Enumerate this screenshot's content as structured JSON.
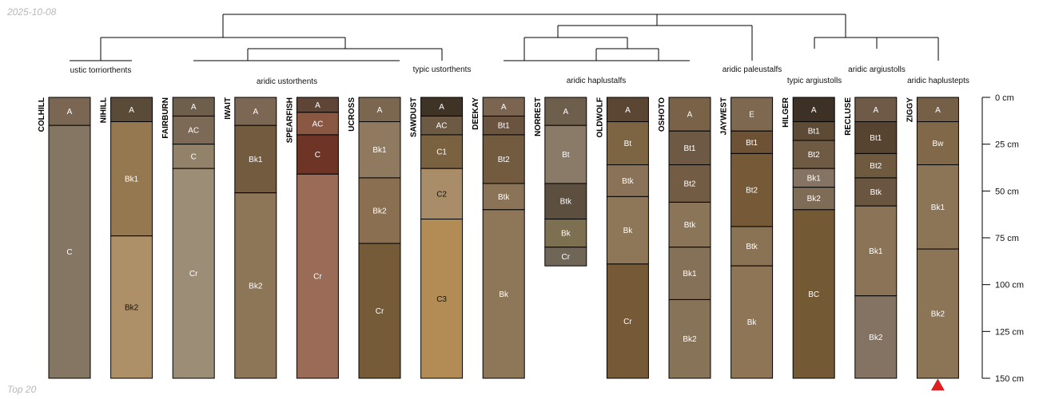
{
  "date_label": "2025-10-08",
  "footer_label": "Top 20",
  "depth_axis": {
    "max_depth_cm": 150,
    "ticks": [
      {
        "value": 0,
        "label": "0 cm"
      },
      {
        "value": 25,
        "label": "25 cm"
      },
      {
        "value": 50,
        "label": "50 cm"
      },
      {
        "value": 75,
        "label": "75 cm"
      },
      {
        "value": 100,
        "label": "100 cm"
      },
      {
        "value": 125,
        "label": "125 cm"
      },
      {
        "value": 150,
        "label": "150 cm"
      }
    ]
  },
  "profiles": [
    {
      "name": "COLHILL",
      "horizons": [
        {
          "name": "A",
          "top": 0,
          "bottom": 15,
          "color": "#7a6652"
        },
        {
          "name": "C",
          "top": 15,
          "bottom": 150,
          "color": "#857563"
        }
      ]
    },
    {
      "name": "NIHILL",
      "horizons": [
        {
          "name": "A",
          "top": 0,
          "bottom": 13,
          "color": "#5a4a38"
        },
        {
          "name": "Bk1",
          "top": 13,
          "bottom": 74,
          "color": "#957850"
        },
        {
          "name": "Bk2",
          "top": 74,
          "bottom": 150,
          "color": "#ad9068",
          "dark_text": true
        }
      ]
    },
    {
      "name": "FAIRBURN",
      "horizons": [
        {
          "name": "A",
          "top": 0,
          "bottom": 10,
          "color": "#6e5f4d"
        },
        {
          "name": "AC",
          "top": 10,
          "bottom": 25,
          "color": "#7d6a56"
        },
        {
          "name": "C",
          "top": 25,
          "bottom": 38,
          "color": "#928269"
        },
        {
          "name": "Cr",
          "top": 38,
          "bottom": 150,
          "color": "#9b8d76"
        }
      ]
    },
    {
      "name": "IWAIT",
      "horizons": [
        {
          "name": "A",
          "top": 0,
          "bottom": 15,
          "color": "#7b6753"
        },
        {
          "name": "Bk1",
          "top": 15,
          "bottom": 51,
          "color": "#735b40"
        },
        {
          "name": "Bk2",
          "top": 51,
          "bottom": 150,
          "color": "#8d7658"
        }
      ]
    },
    {
      "name": "SPEARFISH",
      "horizons": [
        {
          "name": "A",
          "top": 0,
          "bottom": 8,
          "color": "#5e4536"
        },
        {
          "name": "AC",
          "top": 8,
          "bottom": 20,
          "color": "#8a5842"
        },
        {
          "name": "C",
          "top": 20,
          "bottom": 41,
          "color": "#6e3426"
        },
        {
          "name": "Cr",
          "top": 41,
          "bottom": 150,
          "color": "#9a6b56"
        }
      ]
    },
    {
      "name": "UCROSS",
      "horizons": [
        {
          "name": "A",
          "top": 0,
          "bottom": 13,
          "color": "#7b6650"
        },
        {
          "name": "Bk1",
          "top": 13,
          "bottom": 43,
          "color": "#8f7a5f"
        },
        {
          "name": "Bk2",
          "top": 43,
          "bottom": 78,
          "color": "#8a7050"
        },
        {
          "name": "Cr",
          "top": 78,
          "bottom": 150,
          "color": "#755b38"
        }
      ]
    },
    {
      "name": "SAWDUST",
      "horizons": [
        {
          "name": "A",
          "top": 0,
          "bottom": 10,
          "color": "#3f3326"
        },
        {
          "name": "AC",
          "top": 10,
          "bottom": 20,
          "color": "#6d5a44"
        },
        {
          "name": "C1",
          "top": 20,
          "bottom": 38,
          "color": "#7a6140"
        },
        {
          "name": "C2",
          "top": 38,
          "bottom": 65,
          "color": "#a88d68",
          "dark_text": true
        },
        {
          "name": "C3",
          "top": 65,
          "bottom": 150,
          "color": "#b38c55",
          "dark_text": true
        }
      ]
    },
    {
      "name": "DEEKAY",
      "horizons": [
        {
          "name": "A",
          "top": 0,
          "bottom": 10,
          "color": "#7b6551"
        },
        {
          "name": "Bt1",
          "top": 10,
          "bottom": 20,
          "color": "#6a5440"
        },
        {
          "name": "Bt2",
          "top": 20,
          "bottom": 46,
          "color": "#735b40"
        },
        {
          "name": "Btk",
          "top": 46,
          "bottom": 60,
          "color": "#8a7356"
        },
        {
          "name": "Bk",
          "top": 60,
          "bottom": 150,
          "color": "#8e7758"
        }
      ]
    },
    {
      "name": "NORREST",
      "horizons": [
        {
          "name": "A",
          "top": 0,
          "bottom": 15,
          "color": "#6e5e4c"
        },
        {
          "name": "Bt",
          "top": 15,
          "bottom": 46,
          "color": "#8a7a68"
        },
        {
          "name": "Btk",
          "top": 46,
          "bottom": 65,
          "color": "#5d4f40"
        },
        {
          "name": "Bk",
          "top": 65,
          "bottom": 80,
          "color": "#7c7050"
        },
        {
          "name": "Cr",
          "top": 80,
          "bottom": 90,
          "color": "#6f6658"
        }
      ]
    },
    {
      "name": "OLDWOLF",
      "horizons": [
        {
          "name": "A",
          "top": 0,
          "bottom": 13,
          "color": "#5a4633"
        },
        {
          "name": "Bt",
          "top": 13,
          "bottom": 36,
          "color": "#7d6543"
        },
        {
          "name": "Btk",
          "top": 36,
          "bottom": 53,
          "color": "#8a7258"
        },
        {
          "name": "Bk",
          "top": 53,
          "bottom": 89,
          "color": "#8e7658"
        },
        {
          "name": "Cr",
          "top": 89,
          "bottom": 150,
          "color": "#765a38"
        }
      ]
    },
    {
      "name": "OSHOTO",
      "horizons": [
        {
          "name": "A",
          "top": 0,
          "bottom": 18,
          "color": "#7a6248"
        },
        {
          "name": "Bt1",
          "top": 18,
          "bottom": 36,
          "color": "#6e5a44"
        },
        {
          "name": "Bt2",
          "top": 36,
          "bottom": 56,
          "color": "#735c44"
        },
        {
          "name": "Btk",
          "top": 56,
          "bottom": 80,
          "color": "#8a7558"
        },
        {
          "name": "Bk1",
          "top": 80,
          "bottom": 108,
          "color": "#857058"
        },
        {
          "name": "Bk2",
          "top": 108,
          "bottom": 150,
          "color": "#877358"
        }
      ]
    },
    {
      "name": "JAYWEST",
      "horizons": [
        {
          "name": "E",
          "top": 0,
          "bottom": 18,
          "color": "#7e6850"
        },
        {
          "name": "Bt1",
          "top": 18,
          "bottom": 30,
          "color": "#6d5236"
        },
        {
          "name": "Bt2",
          "top": 30,
          "bottom": 69,
          "color": "#765a38"
        },
        {
          "name": "Btk",
          "top": 69,
          "bottom": 90,
          "color": "#8a7255"
        },
        {
          "name": "Bk",
          "top": 90,
          "bottom": 150,
          "color": "#8e7556"
        }
      ]
    },
    {
      "name": "HILGER",
      "horizons": [
        {
          "name": "A",
          "top": 0,
          "bottom": 13,
          "color": "#3d3024"
        },
        {
          "name": "Bt1",
          "top": 13,
          "bottom": 23,
          "color": "#5e4b36"
        },
        {
          "name": "Bt2",
          "top": 23,
          "bottom": 38,
          "color": "#6f5a43"
        },
        {
          "name": "Bk1",
          "top": 38,
          "bottom": 48,
          "color": "#857463"
        },
        {
          "name": "Bk2",
          "top": 48,
          "bottom": 60,
          "color": "#7e6c57"
        },
        {
          "name": "BC",
          "top": 60,
          "bottom": 150,
          "color": "#735a35"
        }
      ]
    },
    {
      "name": "RECLUSE",
      "horizons": [
        {
          "name": "A",
          "top": 0,
          "bottom": 13,
          "color": "#6e5a46"
        },
        {
          "name": "Bt1",
          "top": 13,
          "bottom": 30,
          "color": "#574430"
        },
        {
          "name": "Bt2",
          "top": 30,
          "bottom": 43,
          "color": "#6f5a40"
        },
        {
          "name": "Btk",
          "top": 43,
          "bottom": 58,
          "color": "#6a5540"
        },
        {
          "name": "Bk1",
          "top": 58,
          "bottom": 106,
          "color": "#8a7357"
        },
        {
          "name": "Bk2",
          "top": 106,
          "bottom": 150,
          "color": "#847262"
        }
      ]
    },
    {
      "name": "ZIGGY",
      "truncated": true,
      "horizons": [
        {
          "name": "A",
          "top": 0,
          "bottom": 13,
          "color": "#765f47"
        },
        {
          "name": "Bw",
          "top": 13,
          "bottom": 36,
          "color": "#806849"
        },
        {
          "name": "Bk1",
          "top": 36,
          "bottom": 81,
          "color": "#8c7556"
        },
        {
          "name": "Bk2",
          "top": 81,
          "bottom": 150,
          "color": "#8c7557"
        }
      ]
    }
  ],
  "taxonomy_labels": [
    "ustic torriorthents",
    "aridic ustorthents",
    "typic ustorthents",
    "aridic haplustalfs",
    "aridic paleustalfs",
    "typic argiustolls",
    "aridic argiustolls",
    "aridic haplustepts"
  ],
  "colors": {
    "line": "#000000",
    "truncation_marker": "#e02020",
    "light_label": "#ffffff",
    "dark_label": "#111111"
  }
}
